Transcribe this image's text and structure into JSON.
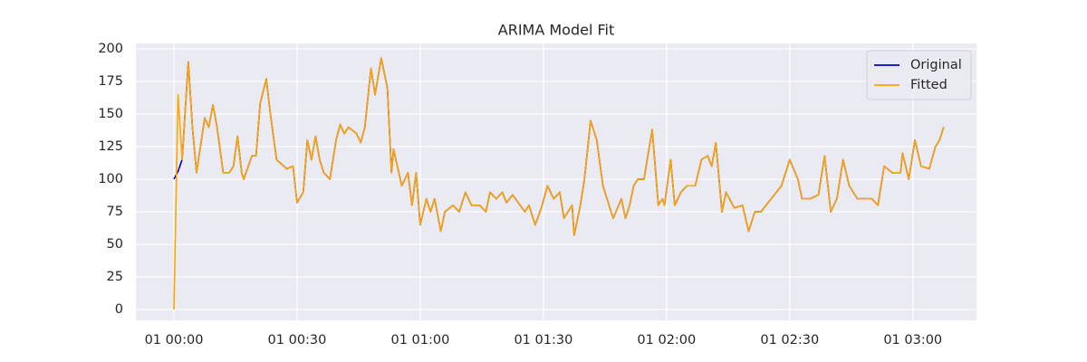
{
  "chart_data": {
    "type": "line",
    "title": "ARIMA Model Fit",
    "x": [
      0,
      1,
      2,
      3.5,
      4.5,
      5.5,
      7.5,
      8.5,
      9.5,
      10.5,
      12,
      13.5,
      14.5,
      15.5,
      16.5,
      17,
      19,
      20,
      21,
      22.5,
      23.5,
      25,
      27.5,
      29,
      30,
      31.5,
      32.5,
      33.5,
      34.5,
      35.5,
      36.5,
      38,
      39.5,
      40.5,
      41.5,
      42.5,
      44.5,
      45.5,
      46.5,
      48,
      49,
      50.5,
      52,
      53,
      53.5,
      55.5,
      57,
      58,
      59,
      60,
      61.5,
      62.5,
      63.5,
      65,
      66,
      68,
      69.5,
      71,
      72.5,
      74.5,
      76,
      77,
      78.5,
      80,
      81,
      82.5,
      85.5,
      86.5,
      88,
      89.5,
      91,
      92.5,
      94,
      95,
      97,
      97.5,
      99,
      100,
      101.5,
      103,
      104.5,
      105.5,
      107,
      109,
      110,
      111,
      112,
      113,
      114.5,
      116.5,
      118,
      119,
      119.5,
      121,
      122,
      123.5,
      125,
      127,
      128.5,
      130,
      131,
      132,
      133.5,
      134.5,
      136.5,
      138.5,
      140,
      141.5,
      143,
      145.5,
      148,
      150,
      152,
      153,
      155,
      157,
      158.5,
      160,
      161.5,
      163,
      164.5,
      166.5,
      170,
      171.5,
      173,
      175,
      177,
      177.5,
      179,
      180.5,
      182,
      184,
      185.5,
      186.5,
      187.5
    ],
    "series": [
      {
        "name": "Original",
        "color": "#0000cd",
        "values": [
          100,
          106,
          115,
          190,
          140,
          105,
          147,
          140,
          157,
          140,
          105,
          105,
          110,
          133,
          105,
          100,
          118,
          118,
          158,
          177,
          150,
          115,
          108,
          110,
          82,
          90,
          130,
          115,
          133,
          115,
          105,
          100,
          130,
          142,
          135,
          140,
          135,
          128,
          140,
          185,
          165,
          193,
          170,
          105,
          123,
          95,
          105,
          80,
          105,
          65,
          85,
          75,
          85,
          60,
          75,
          80,
          75,
          90,
          80,
          80,
          75,
          90,
          85,
          90,
          82,
          88,
          75,
          80,
          65,
          78,
          95,
          85,
          90,
          70,
          80,
          57,
          80,
          100,
          145,
          130,
          95,
          85,
          70,
          85,
          70,
          80,
          95,
          100,
          100,
          138,
          80,
          85,
          80,
          115,
          80,
          90,
          95,
          95,
          115,
          118,
          110,
          128,
          75,
          90,
          78,
          80,
          60,
          75,
          75,
          85,
          95,
          115,
          100,
          85,
          85,
          88,
          118,
          75,
          85,
          115,
          95,
          85,
          85,
          80,
          110,
          105,
          105,
          120,
          100,
          130,
          110,
          108,
          125,
          130,
          140
        ]
      },
      {
        "name": "Fitted",
        "color": "#ffa500",
        "values": [
          0,
          165,
          115,
          190,
          140,
          105,
          147,
          140,
          157,
          140,
          105,
          105,
          110,
          133,
          105,
          100,
          118,
          118,
          158,
          177,
          150,
          115,
          108,
          110,
          82,
          90,
          130,
          115,
          133,
          115,
          105,
          100,
          130,
          142,
          135,
          140,
          135,
          128,
          140,
          185,
          165,
          193,
          170,
          105,
          123,
          95,
          105,
          80,
          105,
          65,
          85,
          75,
          85,
          60,
          75,
          80,
          75,
          90,
          80,
          80,
          75,
          90,
          85,
          90,
          82,
          88,
          75,
          80,
          65,
          78,
          95,
          85,
          90,
          70,
          80,
          57,
          80,
          100,
          145,
          130,
          95,
          85,
          70,
          85,
          70,
          80,
          95,
          100,
          100,
          138,
          80,
          85,
          80,
          115,
          80,
          90,
          95,
          95,
          115,
          118,
          110,
          128,
          75,
          90,
          78,
          80,
          60,
          75,
          75,
          85,
          95,
          115,
          100,
          85,
          85,
          88,
          118,
          75,
          85,
          115,
          95,
          85,
          85,
          80,
          110,
          105,
          105,
          120,
          100,
          130,
          110,
          108,
          125,
          130,
          140
        ]
      }
    ],
    "xlim": [
      -9.27,
      195.5
    ],
    "xticks": [
      {
        "value": 0,
        "label": "01 00:00"
      },
      {
        "value": 30,
        "label": "01 00:30"
      },
      {
        "value": 60,
        "label": "01 01:00"
      },
      {
        "value": 90,
        "label": "01 01:30"
      },
      {
        "value": 120,
        "label": "01 02:00"
      },
      {
        "value": 150,
        "label": "01 02:30"
      },
      {
        "value": 180,
        "label": "01 03:00"
      }
    ],
    "ylim": [
      -8.3,
      204.2
    ],
    "yticks": [
      0,
      25,
      50,
      75,
      100,
      125,
      150,
      175,
      200
    ],
    "grid": true,
    "legend": "upper right"
  }
}
